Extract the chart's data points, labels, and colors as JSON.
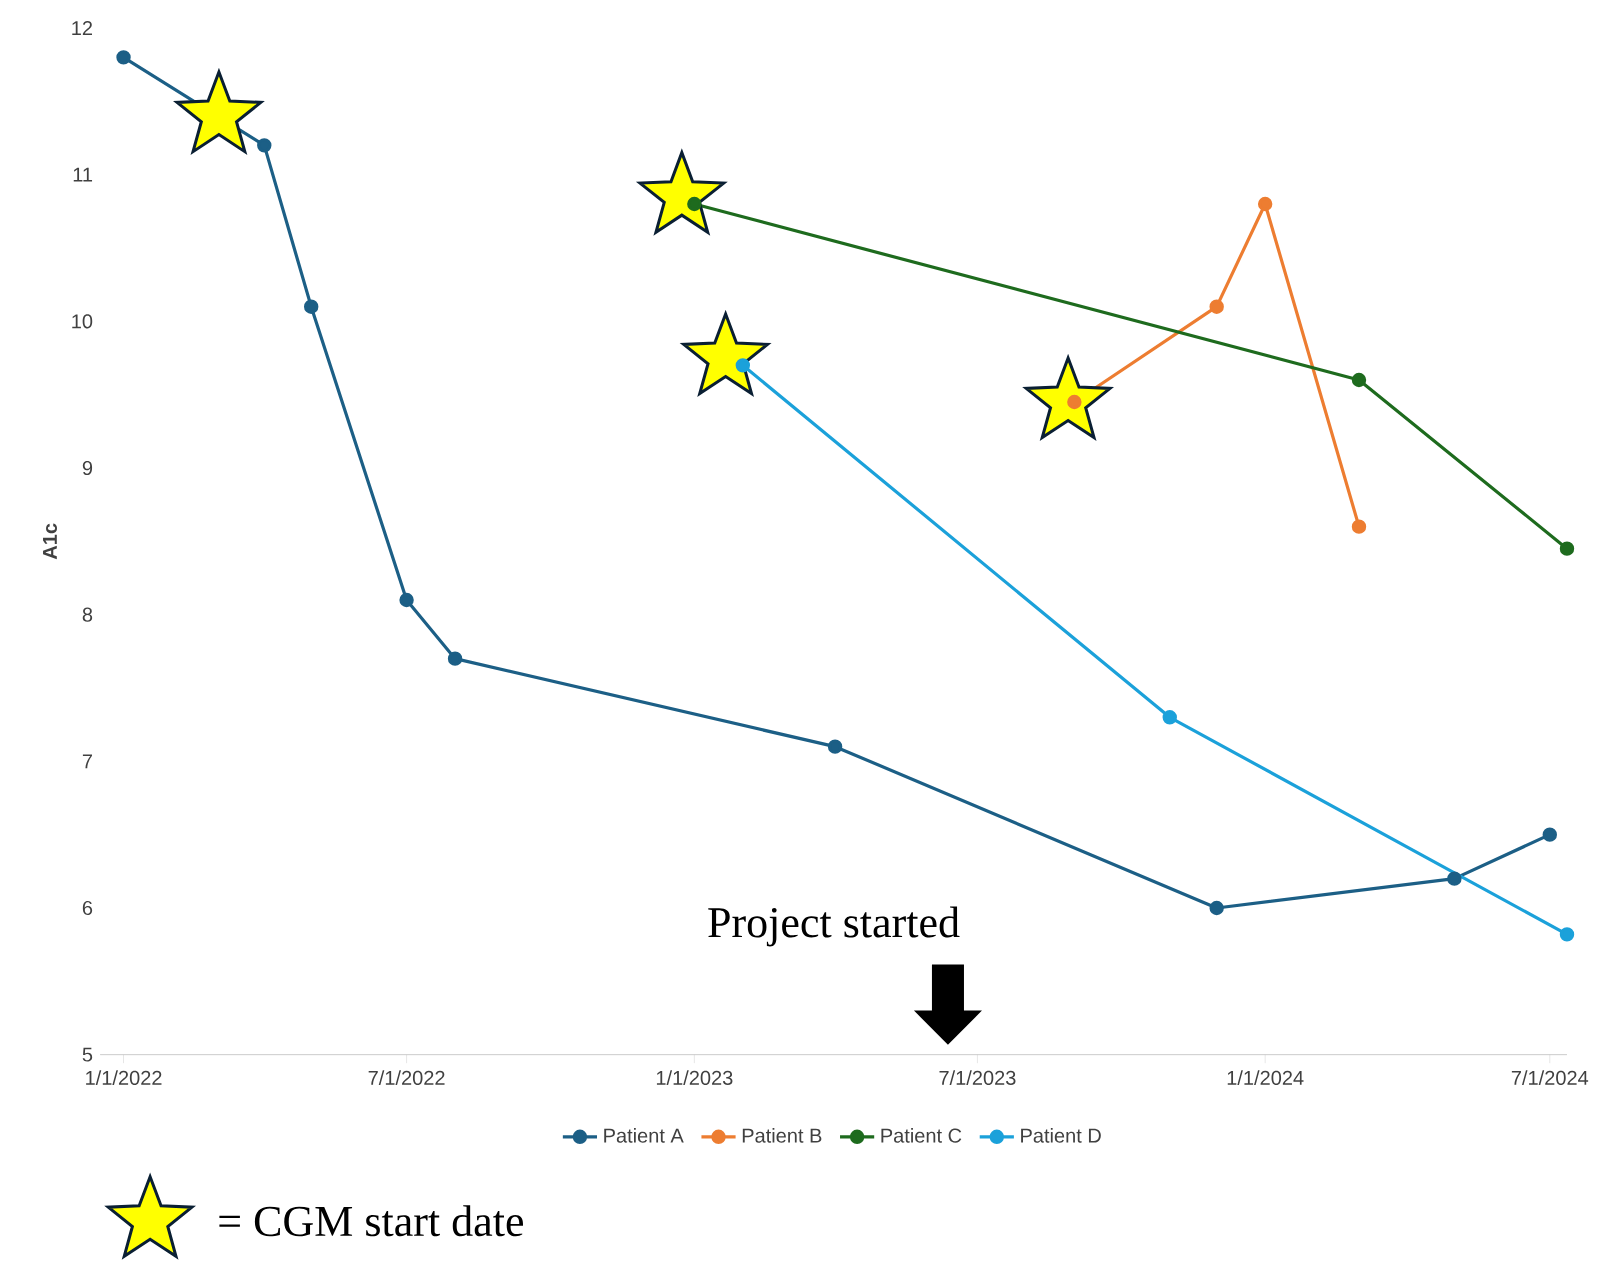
{
  "chart_data": {
    "type": "line",
    "ylabel": "A1c",
    "ylim": [
      5,
      12
    ],
    "yticks": [
      5,
      6,
      7,
      8,
      9,
      10,
      11,
      12
    ],
    "xticks": [
      {
        "value": "2022-01-01",
        "label": "1/1/2022"
      },
      {
        "value": "2022-07-01",
        "label": "7/1/2022"
      },
      {
        "value": "2023-01-01",
        "label": "1/1/2023"
      },
      {
        "value": "2023-07-01",
        "label": "7/1/2023"
      },
      {
        "value": "2024-01-01",
        "label": "1/1/2024"
      },
      {
        "value": "2024-07-01",
        "label": "7/1/2024"
      }
    ],
    "xlim": [
      "2021-12-17",
      "2024-07-12"
    ],
    "legend": "bottom",
    "marker": "circle",
    "line_style": "solid",
    "series": [
      {
        "name": "Patient A",
        "color": "#1c5f86",
        "x": [
          "2022-01-01",
          "2022-04-01",
          "2022-05-01",
          "2022-07-01",
          "2022-08-01",
          "2023-04-01",
          "2023-12-01",
          "2024-05-01",
          "2024-07-01"
        ],
        "values": [
          11.8,
          11.2,
          10.1,
          8.1,
          7.7,
          7.1,
          6.0,
          6.2,
          6.5
        ]
      },
      {
        "name": "Patient B",
        "color": "#ed7d31",
        "x": [
          "2023-09-01",
          "2023-12-01",
          "2024-01-01",
          "2024-03-01"
        ],
        "values": [
          9.45,
          10.1,
          10.8,
          8.6
        ]
      },
      {
        "name": "Patient C",
        "color": "#1e6b1e",
        "x": [
          "2023-01-01",
          "2024-03-01",
          "2024-07-12"
        ],
        "values": [
          10.8,
          9.6,
          8.45
        ]
      },
      {
        "name": "Patient D",
        "color": "#1ba1da",
        "x": [
          "2023-02-01",
          "2023-11-01",
          "2024-07-12"
        ],
        "values": [
          9.7,
          7.3,
          5.82
        ]
      },
      {
        "name": "= CGM start date",
        "type": "scatter",
        "marker": "star",
        "color": "#ffff00",
        "x": [
          "2022-03-03",
          "2022-12-24",
          "2023-01-21",
          "2023-08-28"
        ],
        "values": [
          11.4,
          10.85,
          9.75,
          9.45
        ]
      }
    ],
    "annotations": [
      "Project started"
    ]
  }
}
